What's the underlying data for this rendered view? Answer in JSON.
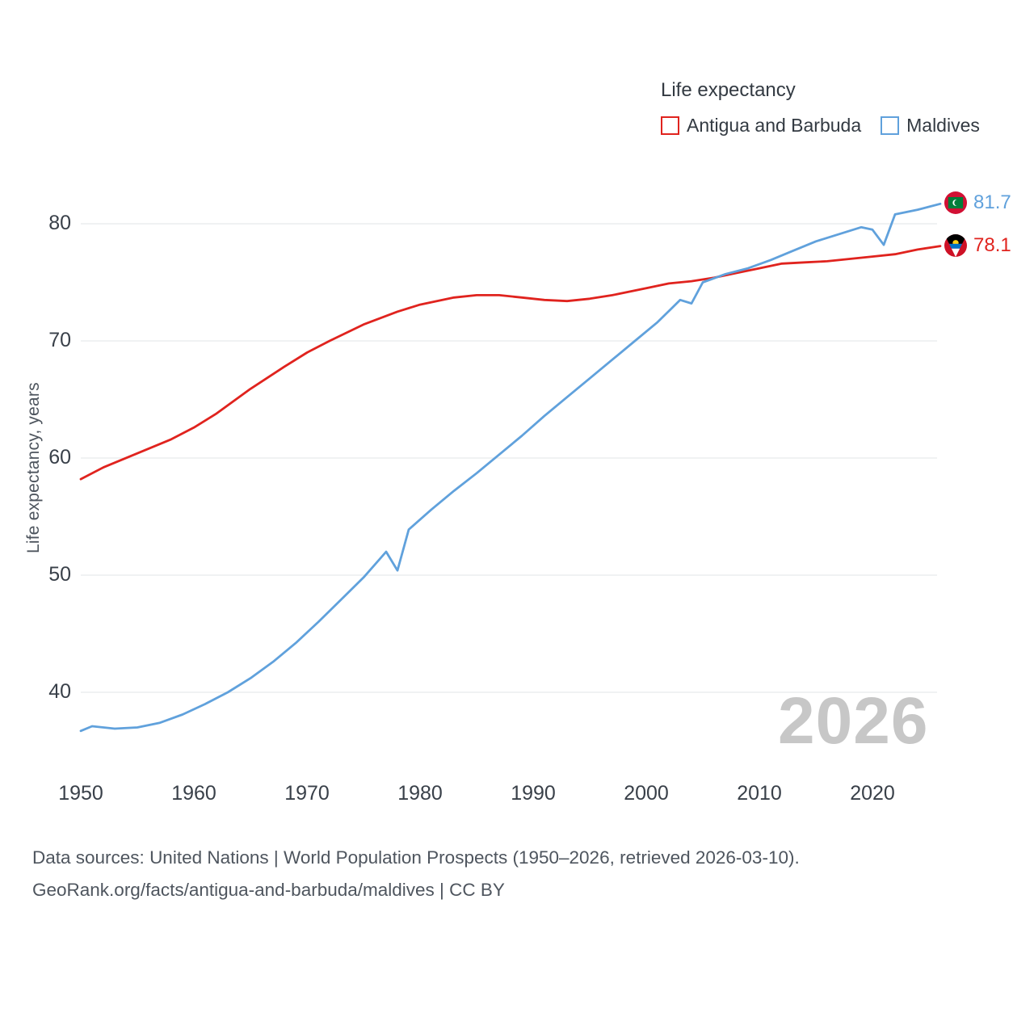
{
  "chart_data": {
    "type": "line",
    "title": "Life expectancy",
    "ylabel": "Life expectancy, years",
    "watermark": "2026",
    "xlim": [
      1950,
      2026
    ],
    "ylim": [
      34,
      84
    ],
    "x_ticks": [
      1950,
      1960,
      1970,
      1980,
      1990,
      2000,
      2010,
      2020
    ],
    "y_ticks": [
      40,
      50,
      60,
      70,
      80
    ],
    "grid": "horizontal",
    "legend_position": "top-right",
    "series": [
      {
        "name": "Antigua and Barbuda",
        "color": "#e0231e",
        "end_label": "78.1",
        "x": [
          1950,
          1952,
          1955,
          1958,
          1960,
          1962,
          1965,
          1968,
          1970,
          1972,
          1975,
          1978,
          1980,
          1983,
          1985,
          1987,
          1989,
          1991,
          1993,
          1995,
          1997,
          2000,
          2002,
          2004,
          2006,
          2008,
          2010,
          2012,
          2014,
          2016,
          2018,
          2020,
          2022,
          2024,
          2026
        ],
        "values": [
          58.2,
          59.2,
          60.4,
          61.6,
          62.6,
          63.8,
          65.9,
          67.8,
          69.0,
          70.0,
          71.4,
          72.5,
          73.1,
          73.7,
          73.9,
          73.9,
          73.7,
          73.5,
          73.4,
          73.6,
          73.9,
          74.5,
          74.9,
          75.1,
          75.4,
          75.8,
          76.2,
          76.6,
          76.7,
          76.8,
          77.0,
          77.2,
          77.4,
          77.8,
          78.1
        ]
      },
      {
        "name": "Maldives",
        "color": "#60a1dc",
        "end_label": "81.7",
        "x": [
          1950,
          1951,
          1953,
          1955,
          1957,
          1959,
          1961,
          1963,
          1965,
          1967,
          1969,
          1971,
          1973,
          1975,
          1977,
          1978,
          1979,
          1981,
          1983,
          1985,
          1987,
          1989,
          1991,
          1993,
          1995,
          1997,
          1999,
          2001,
          2003,
          2004,
          2005,
          2007,
          2009,
          2011,
          2013,
          2015,
          2017,
          2019,
          2020,
          2021,
          2022,
          2024,
          2026
        ],
        "values": [
          36.7,
          37.1,
          36.9,
          37.0,
          37.4,
          38.1,
          39.0,
          40.0,
          41.2,
          42.6,
          44.2,
          46.0,
          47.9,
          49.8,
          52.0,
          50.4,
          53.9,
          55.6,
          57.2,
          58.7,
          60.3,
          61.9,
          63.6,
          65.2,
          66.8,
          68.4,
          70.0,
          71.6,
          73.5,
          73.2,
          75.0,
          75.7,
          76.2,
          76.9,
          77.7,
          78.5,
          79.1,
          79.7,
          79.5,
          78.2,
          80.8,
          81.2,
          81.7
        ]
      }
    ]
  },
  "footer": {
    "line1": "Data sources: United Nations | World Population Prospects (1950–2026, retrieved 2026-03-10).",
    "line2": "GeoRank.org/facts/antigua-and-barbuda/maldives | CC BY"
  }
}
